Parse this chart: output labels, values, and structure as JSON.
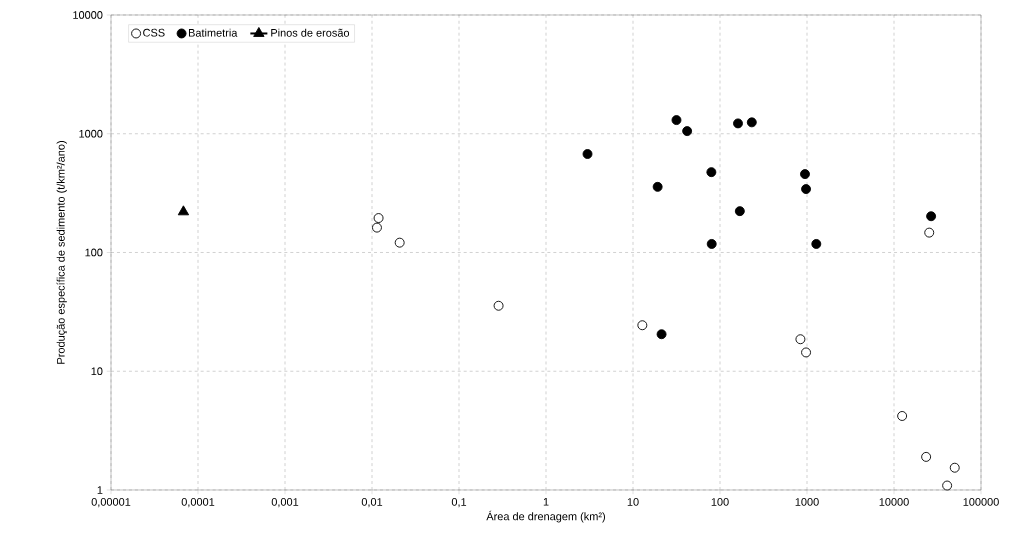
{
  "chart_data": {
    "type": "scatter",
    "xlabel": "Área de drenagem (km²)",
    "ylabel": "Produção específica de sedimento  (t/km²/ano)",
    "log": "xy",
    "grid": true,
    "legend": "top left",
    "xlim": [
      1e-05,
      100000
    ],
    "ylim": [
      1,
      10000
    ],
    "xticks": [
      {
        "value": 1e-05,
        "label": "0,00001"
      },
      {
        "value": 0.0001,
        "label": "0,0001"
      },
      {
        "value": 0.001,
        "label": "0,001"
      },
      {
        "value": 0.01,
        "label": "0,01"
      },
      {
        "value": 0.1,
        "label": "0,1"
      },
      1,
      10,
      100,
      1000,
      10000,
      100000
    ],
    "yticks": [
      1,
      10,
      100,
      1000,
      10000
    ],
    "series": [
      {
        "name": "CSS",
        "color": "#ffffff",
        "marker": "circle",
        "x": [
          0.0119,
          0.0114,
          0.0208,
          0.285,
          12.8,
          840,
          975,
          12400,
          23400,
          49900,
          40800,
          25400
        ],
        "values": [
          195,
          162,
          121,
          35.6,
          24.4,
          18.6,
          14.4,
          4.2,
          1.9,
          1.54,
          1.09,
          147
        ]
      },
      {
        "name": "Batimetria",
        "color": "#000000",
        "marker": "circle",
        "x": [
          3.0,
          31.6,
          41.9,
          161,
          232,
          19.2,
          79.6,
          169,
          80.3,
          948,
          975,
          1279,
          26700,
          21.3
        ],
        "values": [
          675,
          1303,
          1052,
          1222,
          1247,
          357,
          475,
          223,
          118,
          457,
          342,
          118,
          202,
          20.5
        ]
      },
      {
        "name": "Pinos de erosão",
        "type": "line",
        "color": "#000000",
        "marker": "triangle",
        "x": [
          6.8e-05
        ],
        "values": [
          220
        ]
      }
    ]
  }
}
